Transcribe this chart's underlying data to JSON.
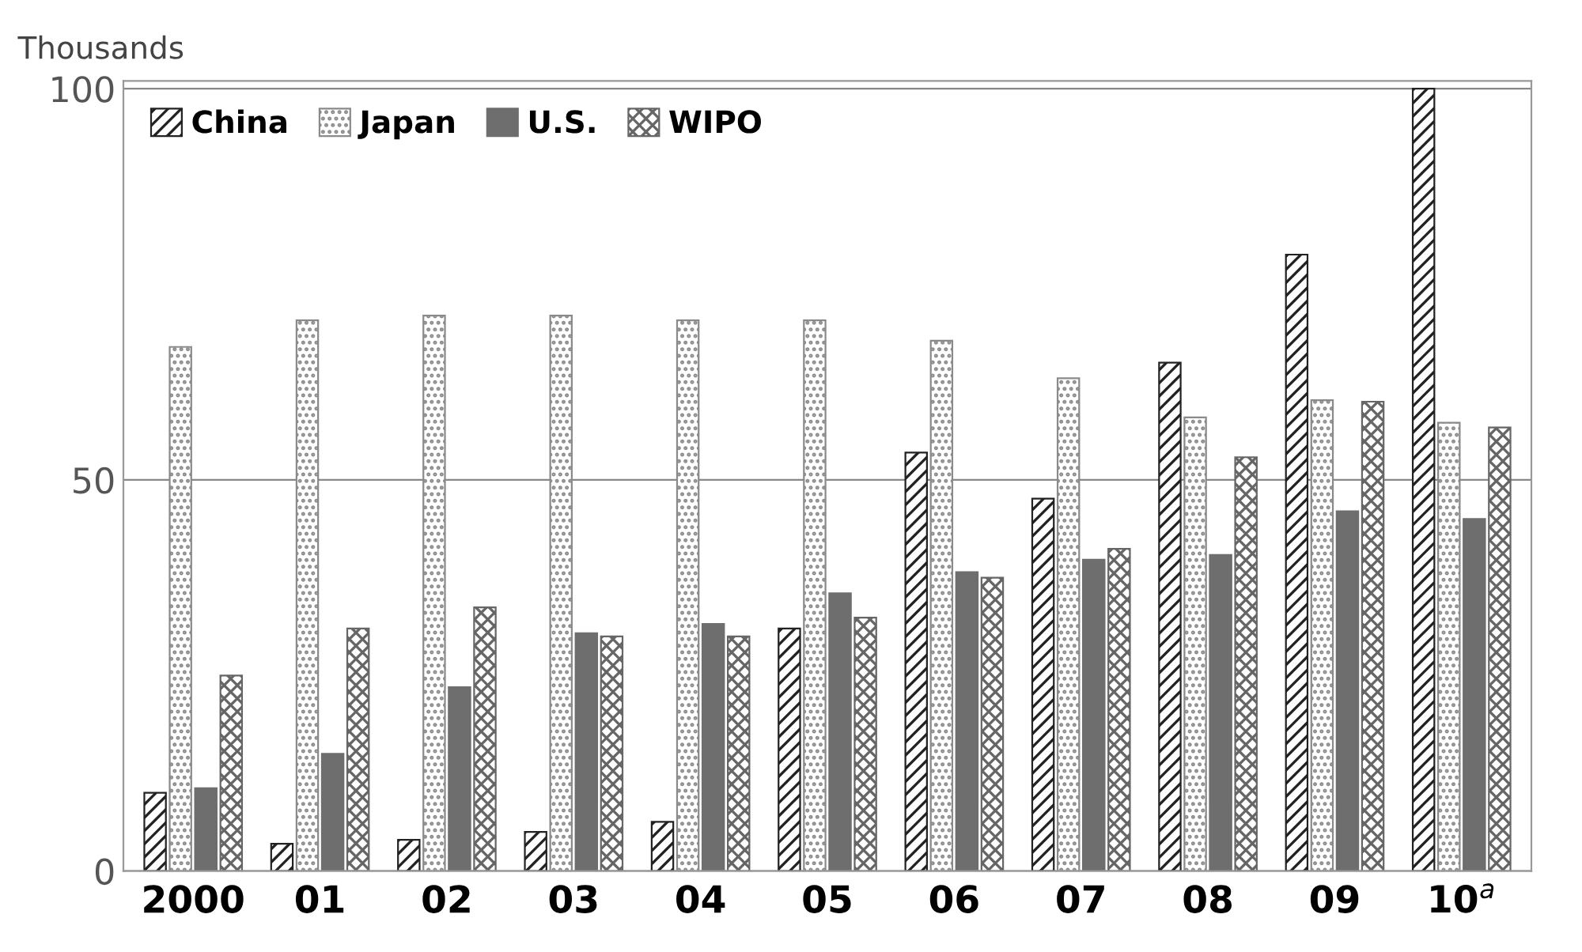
{
  "chart_data": {
    "type": "bar",
    "ylabel": "Thousands",
    "categories": [
      "2000",
      "01",
      "02",
      "03",
      "04",
      "05",
      "06",
      "07",
      "08",
      "09",
      "10$^{a}$"
    ],
    "series": [
      {
        "name": "China",
        "color": "#222222",
        "values": [
          10,
          3.5,
          4,
          5,
          6.3,
          31,
          53.5,
          47.6,
          65,
          78.8,
          100
        ]
      },
      {
        "name": "Japan",
        "color": "#8a8a8a",
        "values": [
          67,
          70.4,
          71,
          71,
          70.4,
          70.4,
          67.8,
          63,
          58,
          60.2,
          57.3
        ]
      },
      {
        "name": "U.S.",
        "color": "#6e6e6e",
        "values": [
          10.6,
          15,
          23.5,
          30.4,
          31.6,
          35.5,
          38.2,
          39.8,
          40.4,
          46,
          45
        ]
      },
      {
        "name": "WIPO",
        "color": "#666666",
        "values": [
          25,
          31,
          33.7,
          30,
          30,
          32.4,
          37.5,
          41.2,
          52.9,
          60,
          56.7
        ]
      }
    ],
    "ylim": [
      0,
      101
    ],
    "yticks": [
      0,
      50,
      100
    ],
    "grid": "y",
    "legend": "top left"
  }
}
